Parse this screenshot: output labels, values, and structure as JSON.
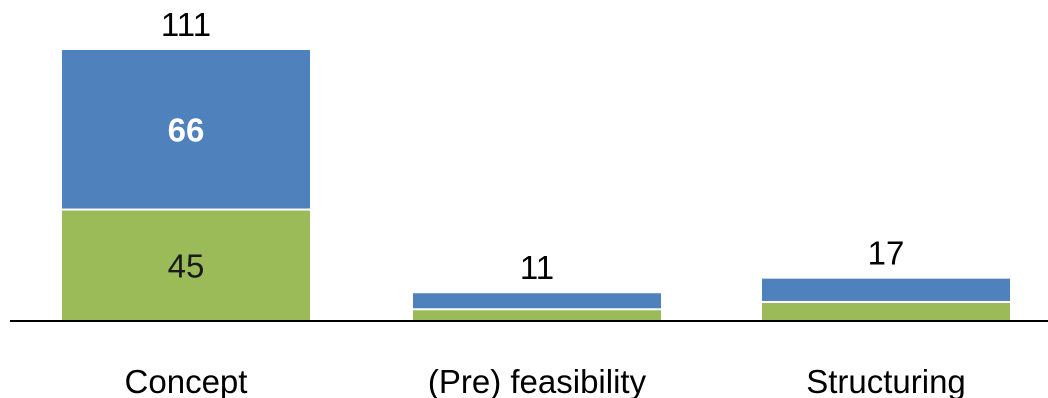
{
  "chart_data": {
    "type": "bar",
    "stacked": true,
    "categories": [
      "Concept",
      "(Pre) feasibility",
      "Structuring"
    ],
    "series": [
      {
        "values": [
          45,
          4,
          7
        ],
        "color": "#9BBB59",
        "data_labels": [
          "45",
          "",
          ""
        ],
        "label_color": "#1a1a1a",
        "label_bold": false
      },
      {
        "values": [
          66,
          7,
          10
        ],
        "color": "#4F81BD",
        "data_labels": [
          "66",
          "",
          ""
        ],
        "label_color": "#ffffff",
        "label_bold": true
      }
    ],
    "totals": [
      111,
      11,
      17
    ],
    "total_labels": [
      "111",
      "11",
      "17"
    ],
    "ylim": [
      0,
      111
    ],
    "grid": false,
    "legend": "none",
    "title": "",
    "xlabel": "",
    "ylabel": ""
  }
}
